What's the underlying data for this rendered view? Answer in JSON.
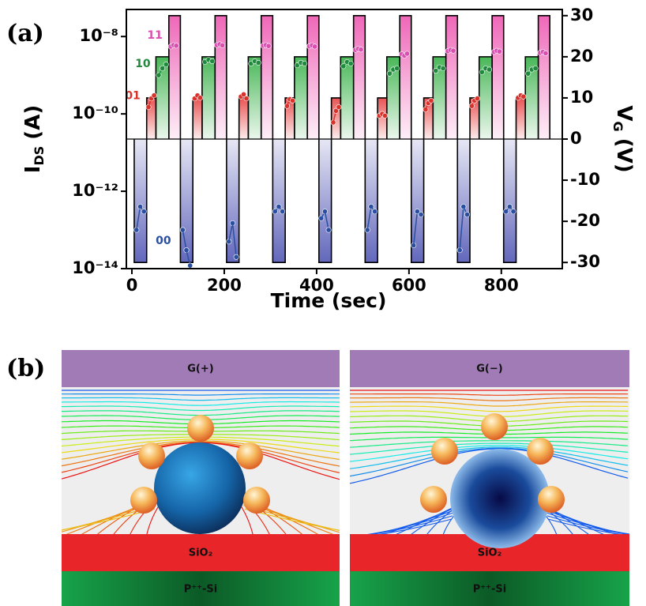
{
  "chart_data": {
    "type": "scatter",
    "panel_label": "(a)",
    "xlabel": "Time (sec)",
    "ylabel": [
      "I",
      "DS",
      "(A)"
    ],
    "y2label": [
      "V",
      "G",
      "(V)"
    ],
    "log_y": true,
    "xlim": [
      -12,
      932
    ],
    "xticks": [
      0,
      200,
      400,
      600,
      800
    ],
    "ylim": [
      1e-14,
      5e-08
    ],
    "yticks": [
      {
        "value": 1e-14,
        "label": "10⁻¹⁴"
      },
      {
        "value": 1e-12,
        "label": "10⁻¹²"
      },
      {
        "value": 1e-10,
        "label": "10⁻¹⁰"
      },
      {
        "value": 1e-08,
        "label": "10⁻⁸"
      }
    ],
    "y2lim": [
      -31.5,
      31.5
    ],
    "y2ticks": [
      -30,
      -20,
      -10,
      0,
      10,
      20,
      30
    ],
    "series": [
      {
        "name": "11",
        "color": "#d94fb0",
        "x": [
          84,
          90,
          96,
          184,
          190,
          196,
          284,
          290,
          296,
          384,
          390,
          396,
          484,
          490,
          496,
          584,
          590,
          596,
          684,
          690,
          696,
          784,
          790,
          796,
          884,
          890,
          896
        ],
        "values": [
          5.5e-09,
          6e-09,
          5.8e-09,
          6e-09,
          6.3e-09,
          5.9e-09,
          5.8e-09,
          6e-09,
          5.7e-09,
          5.6e-09,
          5.9e-09,
          5.5e-09,
          4.5e-09,
          4.8e-09,
          4.6e-09,
          3.5e-09,
          3.2e-09,
          3.6e-09,
          4.2e-09,
          4.5e-09,
          4.3e-09,
          4e-09,
          4.3e-09,
          4.1e-09,
          3.8e-09,
          4e-09,
          3.7e-09
        ]
      },
      {
        "name": "10",
        "color": "#1f8a3e",
        "x": [
          58,
          66,
          74,
          158,
          166,
          174,
          258,
          266,
          274,
          358,
          366,
          374,
          458,
          466,
          474,
          558,
          566,
          574,
          658,
          666,
          674,
          758,
          766,
          774,
          858,
          866,
          874
        ],
        "values": [
          1e-09,
          1.5e-09,
          1.9e-09,
          2.2e-09,
          2.5e-09,
          2.3e-09,
          2e-09,
          2.3e-09,
          2.1e-09,
          1.8e-09,
          2.1e-09,
          2e-09,
          1.7e-09,
          2.2e-09,
          2e-09,
          1.1e-09,
          1.4e-09,
          1.5e-09,
          1.3e-09,
          1.6e-09,
          1.5e-09,
          1.2e-09,
          1.5e-09,
          1.4e-09,
          1.1e-09,
          1.4e-09,
          1.5e-09
        ]
      },
      {
        "name": "01",
        "color": "#d9322b",
        "x": [
          36,
          42,
          48,
          136,
          142,
          148,
          236,
          242,
          248,
          336,
          342,
          348,
          436,
          442,
          448,
          536,
          542,
          548,
          636,
          642,
          648,
          736,
          742,
          748,
          836,
          842,
          848
        ],
        "values": [
          1.5e-10,
          2.5e-10,
          3e-10,
          2.5e-10,
          3e-10,
          2.6e-10,
          2.8e-10,
          3.2e-10,
          2.5e-10,
          1.6e-10,
          2.4e-10,
          2.2e-10,
          6e-11,
          1.2e-10,
          1.5e-10,
          9e-11,
          1e-10,
          9e-11,
          1.3e-10,
          1.9e-10,
          2.2e-10,
          1.6e-10,
          2.2e-10,
          2.5e-10,
          2.6e-10,
          3e-10,
          2.8e-10
        ]
      },
      {
        "name": "00",
        "color": "#2a4fa0",
        "x": [
          10,
          18,
          26,
          110,
          118,
          126,
          210,
          218,
          226,
          310,
          318,
          326,
          410,
          418,
          426,
          510,
          518,
          526,
          610,
          618,
          626,
          710,
          718,
          726,
          810,
          818,
          826
        ],
        "values": [
          1e-13,
          4e-13,
          3e-13,
          1e-13,
          3e-14,
          1.2e-14,
          5e-14,
          1.5e-13,
          2e-14,
          3e-13,
          4e-13,
          3e-13,
          2e-13,
          3e-13,
          1e-13,
          1e-13,
          4e-13,
          3e-13,
          4e-14,
          3e-13,
          2.5e-13,
          3e-14,
          4e-13,
          2.5e-13,
          3e-13,
          4e-13,
          3e-13
        ]
      }
    ],
    "gate_pulses": [
      {
        "axis": "y2",
        "color": "#ee5fb4",
        "x_start": [
          80,
          180,
          280,
          380,
          480,
          580,
          680,
          780,
          880
        ],
        "x_end": [
          105,
          205,
          305,
          405,
          505,
          605,
          705,
          805,
          905
        ],
        "values": [
          30,
          30,
          30,
          30,
          30,
          30,
          30,
          30,
          30
        ]
      },
      {
        "axis": "y2",
        "color": "#3fb34f",
        "x_start": [
          52,
          152,
          252,
          352,
          452,
          552,
          652,
          752,
          852
        ],
        "x_end": [
          80,
          180,
          280,
          380,
          480,
          580,
          680,
          780,
          880
        ],
        "values": [
          20,
          20,
          20,
          20,
          20,
          20,
          20,
          20,
          20
        ]
      },
      {
        "axis": "y2",
        "color": "#e84a4a",
        "x_start": [
          32,
          132,
          232,
          332,
          432,
          532,
          632,
          732,
          832
        ],
        "x_end": [
          52,
          152,
          252,
          352,
          452,
          552,
          652,
          752,
          852
        ],
        "values": [
          10,
          10,
          10,
          10,
          10,
          10,
          10,
          10,
          10
        ]
      },
      {
        "axis": "y2",
        "color": "#5a5fb8",
        "x_start": [
          5,
          105,
          205,
          305,
          405,
          505,
          605,
          705,
          805
        ],
        "x_end": [
          32,
          132,
          232,
          332,
          432,
          532,
          632,
          732,
          832
        ],
        "values": [
          -30,
          -30,
          -30,
          -30,
          -30,
          -30,
          -30,
          -30,
          -30
        ]
      }
    ]
  },
  "diagram": {
    "panel_label": "(b)",
    "panels": [
      {
        "gate": "G(+)",
        "oxide": "SiO₂",
        "substrate": "P⁺⁺-Si"
      },
      {
        "gate": "G(−)",
        "oxide": "SiO₂",
        "substrate": "P⁺⁺-Si"
      }
    ]
  }
}
